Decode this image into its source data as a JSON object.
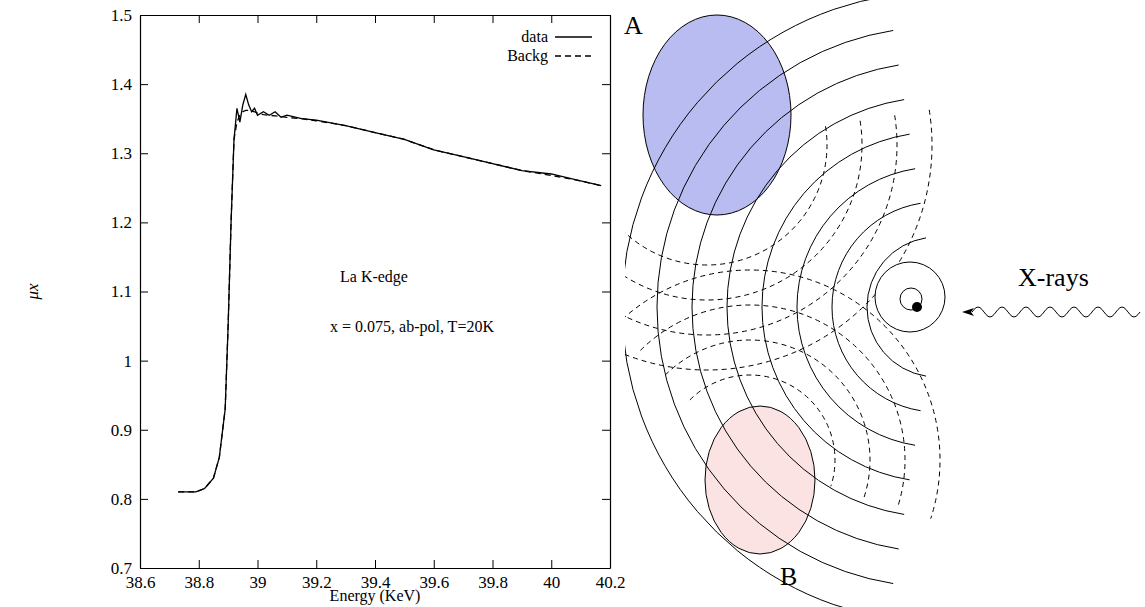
{
  "chart_data": {
    "type": "line",
    "x_label": "Energy (KeV)",
    "y_label": "μx",
    "annotations": [
      "La K-edge",
      "x = 0.075, ab-pol, T=20K"
    ],
    "x": [
      38.73,
      38.76,
      38.79,
      38.82,
      38.85,
      38.87,
      38.89,
      38.9,
      38.91,
      38.92,
      38.93,
      38.94,
      38.95,
      38.96,
      38.97,
      38.98,
      38.99,
      39.0,
      39.02,
      39.04,
      39.06,
      39.08,
      39.1,
      39.15,
      39.2,
      39.3,
      39.4,
      39.5,
      39.6,
      39.7,
      39.8,
      39.9,
      40.0,
      40.1,
      40.17
    ],
    "series": [
      {
        "name": "data",
        "color": "#000000",
        "line_style": "solid",
        "values": [
          0.81,
          0.81,
          0.81,
          0.815,
          0.83,
          0.86,
          0.93,
          1.05,
          1.2,
          1.32,
          1.365,
          1.345,
          1.37,
          1.385,
          1.37,
          1.36,
          1.365,
          1.355,
          1.36,
          1.355,
          1.36,
          1.352,
          1.355,
          1.35,
          1.348,
          1.34,
          1.33,
          1.32,
          1.305,
          1.295,
          1.285,
          1.275,
          1.27,
          1.26,
          1.253
        ]
      },
      {
        "name": "Backg",
        "color": "#000000",
        "line_style": "dashed",
        "values": [
          0.81,
          0.81,
          0.81,
          0.815,
          0.83,
          0.86,
          0.93,
          1.05,
          1.2,
          1.32,
          1.345,
          1.355,
          1.36,
          1.362,
          1.362,
          1.361,
          1.36,
          1.358,
          1.356,
          1.355,
          1.354,
          1.353,
          1.352,
          1.35,
          1.347,
          1.34,
          1.33,
          1.32,
          1.305,
          1.295,
          1.285,
          1.275,
          1.268,
          1.26,
          1.253
        ]
      }
    ],
    "xlim": [
      38.6,
      40.2
    ],
    "xticks": [
      38.6,
      38.8,
      39,
      39.2,
      39.4,
      39.6,
      39.8,
      40,
      40.2
    ],
    "ylim": [
      0.7,
      1.5
    ],
    "yticks": [
      0.7,
      0.8,
      0.9,
      1,
      1.1,
      1.2,
      1.3,
      1.4,
      1.5
    ],
    "legend": "upper right",
    "grid": false
  },
  "diagram": {
    "scatterers": [
      {
        "label": "A"
      },
      {
        "label": "B"
      }
    ],
    "source": {
      "label": "X-rays"
    }
  }
}
